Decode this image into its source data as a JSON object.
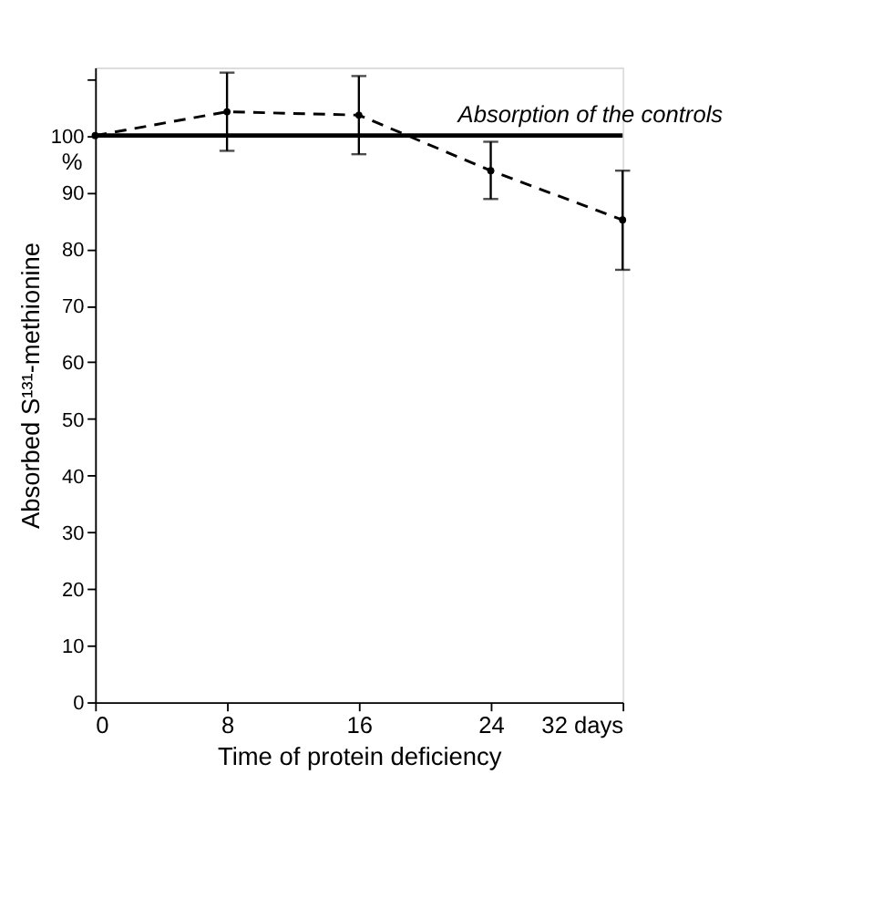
{
  "chart_data": {
    "type": "line",
    "xlabel": "Time of protein deficiency",
    "ylabel": "Absorbed S¹³¹-methionine",
    "x": [
      0,
      8,
      16,
      24,
      32
    ],
    "series": [
      {
        "color": "#000000",
        "values": [
          100,
          104.2,
          103.6,
          93.8,
          85.1
        ],
        "errors": [
          null,
          [
            97.3,
            111.1
          ],
          [
            96.7,
            110.5
          ],
          [
            88.8,
            98.9
          ],
          [
            76.3,
            93.8
          ]
        ],
        "line_style": "dashed",
        "marker": "circle"
      }
    ],
    "xlim": [
      0,
      32
    ],
    "xticks": [
      0,
      8,
      16,
      24,
      {
        "value": 32,
        "label": "32 days"
      }
    ],
    "ylim": [
      0,
      112
    ],
    "yticks": [
      0,
      10,
      20,
      30,
      40,
      50,
      60,
      70,
      80,
      90,
      100,
      {
        "value": 110,
        "label": null
      }
    ],
    "ref_lines": [
      {
        "axis": "y",
        "value": 100,
        "label": "Absorption of the controls",
        "color": "#000000",
        "line_style": "solid"
      }
    ],
    "annotations": [
      "%"
    ],
    "grid": false
  }
}
